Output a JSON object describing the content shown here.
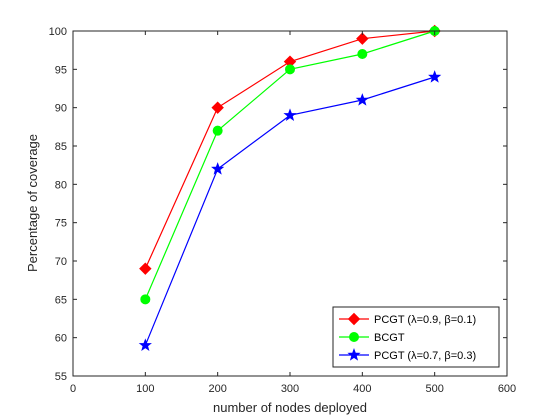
{
  "chart_data": {
    "type": "line",
    "xlabel": "number of nodes deployed",
    "ylabel": "Percentage of coverage",
    "xlim": [
      0,
      600
    ],
    "ylim": [
      55,
      100
    ],
    "xticks": [
      0,
      100,
      200,
      300,
      400,
      500,
      600
    ],
    "yticks": [
      55,
      60,
      65,
      70,
      75,
      80,
      85,
      90,
      95,
      100
    ],
    "grid": false,
    "legend_position": "bottom-right",
    "series": [
      {
        "name": "PCGT (λ=0.9, β=0.1)",
        "color": "#ff0000",
        "marker": "diamond",
        "points": [
          [
            100,
            69
          ],
          [
            200,
            90
          ],
          [
            300,
            96
          ],
          [
            400,
            99
          ],
          [
            500,
            100
          ]
        ]
      },
      {
        "name": "BCGT",
        "color": "#00ff00",
        "marker": "circle",
        "points": [
          [
            100,
            65
          ],
          [
            200,
            87
          ],
          [
            300,
            95
          ],
          [
            400,
            97
          ],
          [
            500,
            100
          ]
        ]
      },
      {
        "name": "PCGT (λ=0.7, β=0.3)",
        "color": "#0000ff",
        "marker": "star",
        "points": [
          [
            100,
            59
          ],
          [
            200,
            82
          ],
          [
            300,
            89
          ],
          [
            400,
            91
          ],
          [
            500,
            94
          ]
        ]
      }
    ]
  }
}
